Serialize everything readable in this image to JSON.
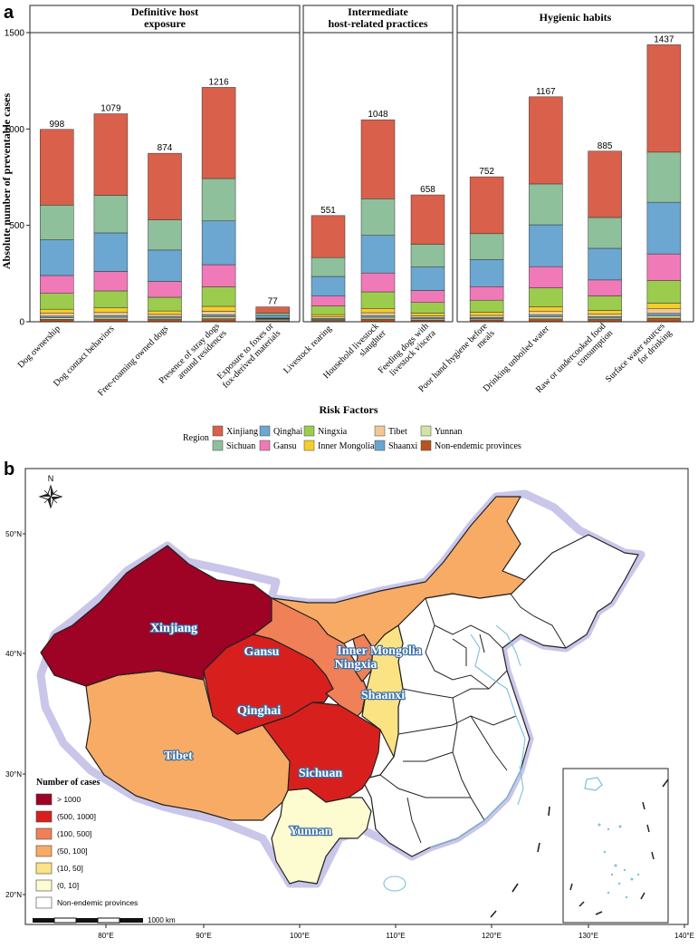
{
  "panel_a_label": "a",
  "panel_b_label": "b",
  "chart_data": {
    "type": "bar",
    "stacked": true,
    "ylabel": "Absolute number of preventable cases",
    "xlabel": "Risk Factors",
    "ylim": [
      0,
      1500
    ],
    "yticks": [
      0,
      500,
      1000,
      1500
    ],
    "groups": [
      {
        "label_lines": [
          "Definitive host",
          "exposure"
        ],
        "count": 5
      },
      {
        "label_lines": [
          "Intermediate",
          "host-related practices"
        ],
        "count": 3
      },
      {
        "label_lines": [
          "Hygienic habits"
        ],
        "count": 4
      }
    ],
    "categories": [
      [
        "Dog ownership"
      ],
      [
        "Dog contact behaviors"
      ],
      [
        "Free-roaming owned dogs"
      ],
      [
        "Presence of stray dogs",
        "around residences"
      ],
      [
        "Exposure to foxes or",
        "fox-derived materials"
      ],
      [
        "Livestock rearing"
      ],
      [
        "Household livestock",
        "slaughter"
      ],
      [
        "Feeding dogs with",
        "livestock viscera"
      ],
      [
        "Poor hand hygiene before",
        "meals"
      ],
      [
        "Drinking unboiled water"
      ],
      [
        "Raw or undercooked food",
        "consumption"
      ],
      [
        "Surface water sources",
        "for drinking"
      ]
    ],
    "totals": [
      998,
      1079,
      874,
      1216,
      77,
      551,
      1048,
      658,
      752,
      1167,
      885,
      1437
    ],
    "series": [
      {
        "name": "Non-endemic provinces",
        "color": "#b8541e",
        "values": [
          13,
          14,
          12,
          16,
          1,
          7,
          14,
          9,
          10,
          15,
          12,
          19
        ]
      },
      {
        "name": "Yunnan",
        "color": "#d1e3a5",
        "values": [
          8,
          9,
          7,
          10,
          1,
          5,
          9,
          6,
          6,
          10,
          7,
          12
        ]
      },
      {
        "name": "Shaanxi",
        "color": "#6aa6cf",
        "values": [
          8,
          9,
          7,
          10,
          3,
          5,
          9,
          6,
          6,
          10,
          7,
          12
        ]
      },
      {
        "name": "Tibet",
        "color": "#f0c896",
        "values": [
          15,
          16,
          12,
          18,
          6,
          8,
          15,
          10,
          11,
          18,
          13,
          24
        ]
      },
      {
        "name": "Inner Mongolia",
        "color": "#f5cd2c",
        "values": [
          21,
          24,
          18,
          26,
          4,
          12,
          22,
          14,
          17,
          25,
          20,
          29
        ]
      },
      {
        "name": "Ningxia",
        "color": "#9ccc4e",
        "values": [
          82,
          88,
          71,
          101,
          2,
          45,
          86,
          55,
          62,
          98,
          75,
          118
        ]
      },
      {
        "name": "Gansu",
        "color": "#f07ab7",
        "values": [
          93,
          101,
          82,
          115,
          2,
          51,
          98,
          62,
          70,
          110,
          83,
          138
        ]
      },
      {
        "name": "Qinghai",
        "color": "#6ba7d1",
        "values": [
          185,
          200,
          163,
          227,
          14,
          102,
          195,
          122,
          140,
          217,
          164,
          268
        ]
      },
      {
        "name": "Sichuan",
        "color": "#8fc09c",
        "values": [
          180,
          195,
          157,
          220,
          12,
          98,
          190,
          118,
          135,
          212,
          160,
          260
        ]
      },
      {
        "name": "Xinjiang",
        "color": "#d9604a",
        "values": [
          393,
          423,
          345,
          473,
          32,
          218,
          410,
          256,
          295,
          452,
          344,
          557
        ]
      }
    ]
  },
  "legend": {
    "title": "Region",
    "items": [
      {
        "name": "Xinjiang",
        "color": "#d9604a"
      },
      {
        "name": "Qinghai",
        "color": "#6ba7d1"
      },
      {
        "name": "Ningxia",
        "color": "#9ccc4e"
      },
      {
        "name": "Tibet",
        "color": "#f0c896"
      },
      {
        "name": "Yunnan",
        "color": "#d1e3a5"
      },
      {
        "name": "Sichuan",
        "color": "#8fc09c"
      },
      {
        "name": "Gansu",
        "color": "#f07ab7"
      },
      {
        "name": "Inner Mongolia",
        "color": "#f5cd2c"
      },
      {
        "name": "Shaanxi",
        "color": "#6aa6cf"
      },
      {
        "name": "Non-endemic provinces",
        "color": "#b8541e"
      }
    ]
  },
  "map": {
    "north_label": "N",
    "lat_labels": [
      "50°N",
      "40°N",
      "30°N",
      "20°N"
    ],
    "lon_labels": [
      "80°E",
      "90°E",
      "100°E",
      "110°E",
      "120°E",
      "130°E",
      "140°E"
    ],
    "regions": [
      {
        "name": "Xinjiang",
        "category": "> 1000",
        "fill": "#9e0225"
      },
      {
        "name": "Qinghai",
        "category": "(500, 1000]",
        "fill": "#d7201e"
      },
      {
        "name": "Sichuan",
        "category": "(500, 1000]",
        "fill": "#d7201e"
      },
      {
        "name": "Gansu",
        "category": "(100, 500]",
        "fill": "#f08057"
      },
      {
        "name": "Ningxia",
        "category": "(100, 500]",
        "fill": "#f08057"
      },
      {
        "name": "Inner Mongolia",
        "category": "(50, 100]",
        "fill": "#f8ab64"
      },
      {
        "name": "Tibet",
        "category": "(50, 100]",
        "fill": "#f8ab64"
      },
      {
        "name": "Shaanxi",
        "category": "(10, 50]",
        "fill": "#fbe384"
      },
      {
        "name": "Yunnan",
        "category": "(0, 10]",
        "fill": "#fdfbd0"
      }
    ],
    "legend_title": "Number of cases",
    "legend_items": [
      {
        "label": "> 1000",
        "color": "#9e0225"
      },
      {
        "label": "(500, 1000]",
        "color": "#d7201e"
      },
      {
        "label": "(100, 500]",
        "color": "#f08057"
      },
      {
        "label": "(50, 100]",
        "color": "#f8ab64"
      },
      {
        "label": "(10, 50]",
        "color": "#fbe384"
      },
      {
        "label": "(0, 10]",
        "color": "#fdfbd0"
      },
      {
        "label": "Non-endemic provinces",
        "color": "#ffffff"
      }
    ],
    "scale_label": "1000 km"
  }
}
